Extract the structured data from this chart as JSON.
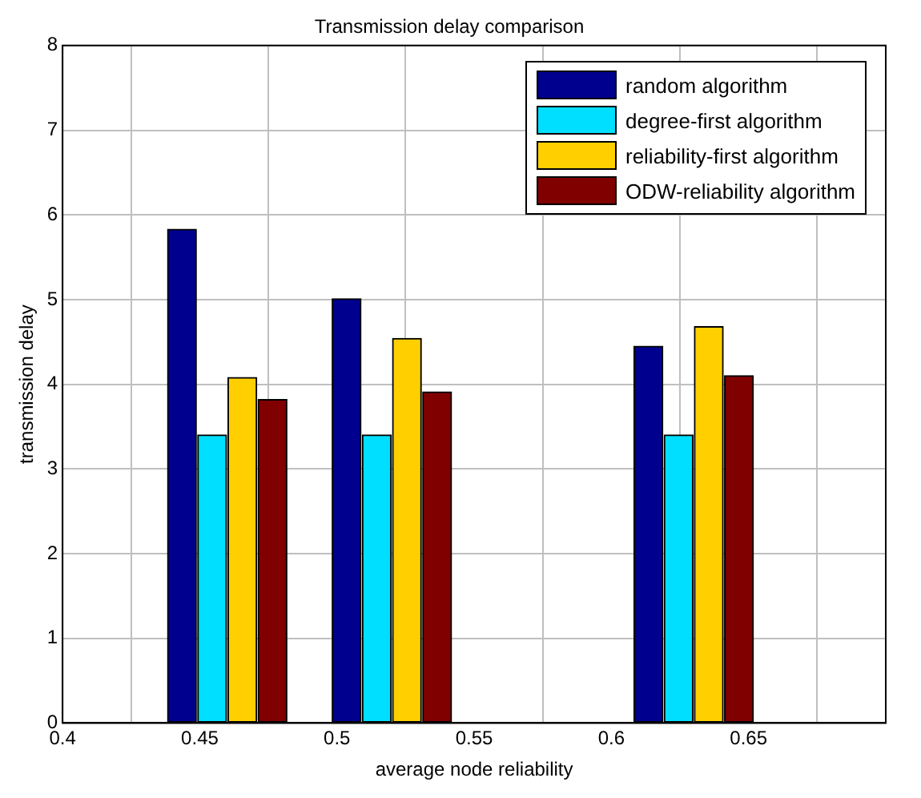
{
  "chart_data": {
    "type": "bar",
    "title": "Transmission delay comparison",
    "xlabel": "average node reliability",
    "ylabel": "transmission delay",
    "series": [
      {
        "name": "random algorithm",
        "color": "#00008f",
        "x": [
          0.4435,
          0.5035,
          0.6135
        ],
        "values": [
          5.83,
          5.01,
          4.45
        ]
      },
      {
        "name": "degree-first algorithm",
        "color": "#00dfff",
        "x": [
          0.4545,
          0.5145,
          0.6245
        ],
        "values": [
          3.4,
          3.4,
          3.4
        ]
      },
      {
        "name": "reliability-first algorithm",
        "color": "#ffcf00",
        "x": [
          0.4655,
          0.5255,
          0.6355
        ],
        "values": [
          4.08,
          4.54,
          4.68
        ]
      },
      {
        "name": "ODW-reliability algorithm",
        "color": "#800000",
        "x": [
          0.4765,
          0.5365,
          0.6465
        ],
        "values": [
          3.82,
          3.91,
          4.1
        ]
      }
    ],
    "xlim": [
      0.4,
      0.7
    ],
    "xticks": [
      0.4,
      0.45,
      0.5,
      0.55,
      0.6,
      0.65
    ],
    "ylim": [
      0,
      8
    ],
    "yticks": [
      0,
      1,
      2,
      3,
      4,
      5,
      6,
      7,
      8
    ],
    "grid": true,
    "legend": "top right"
  }
}
